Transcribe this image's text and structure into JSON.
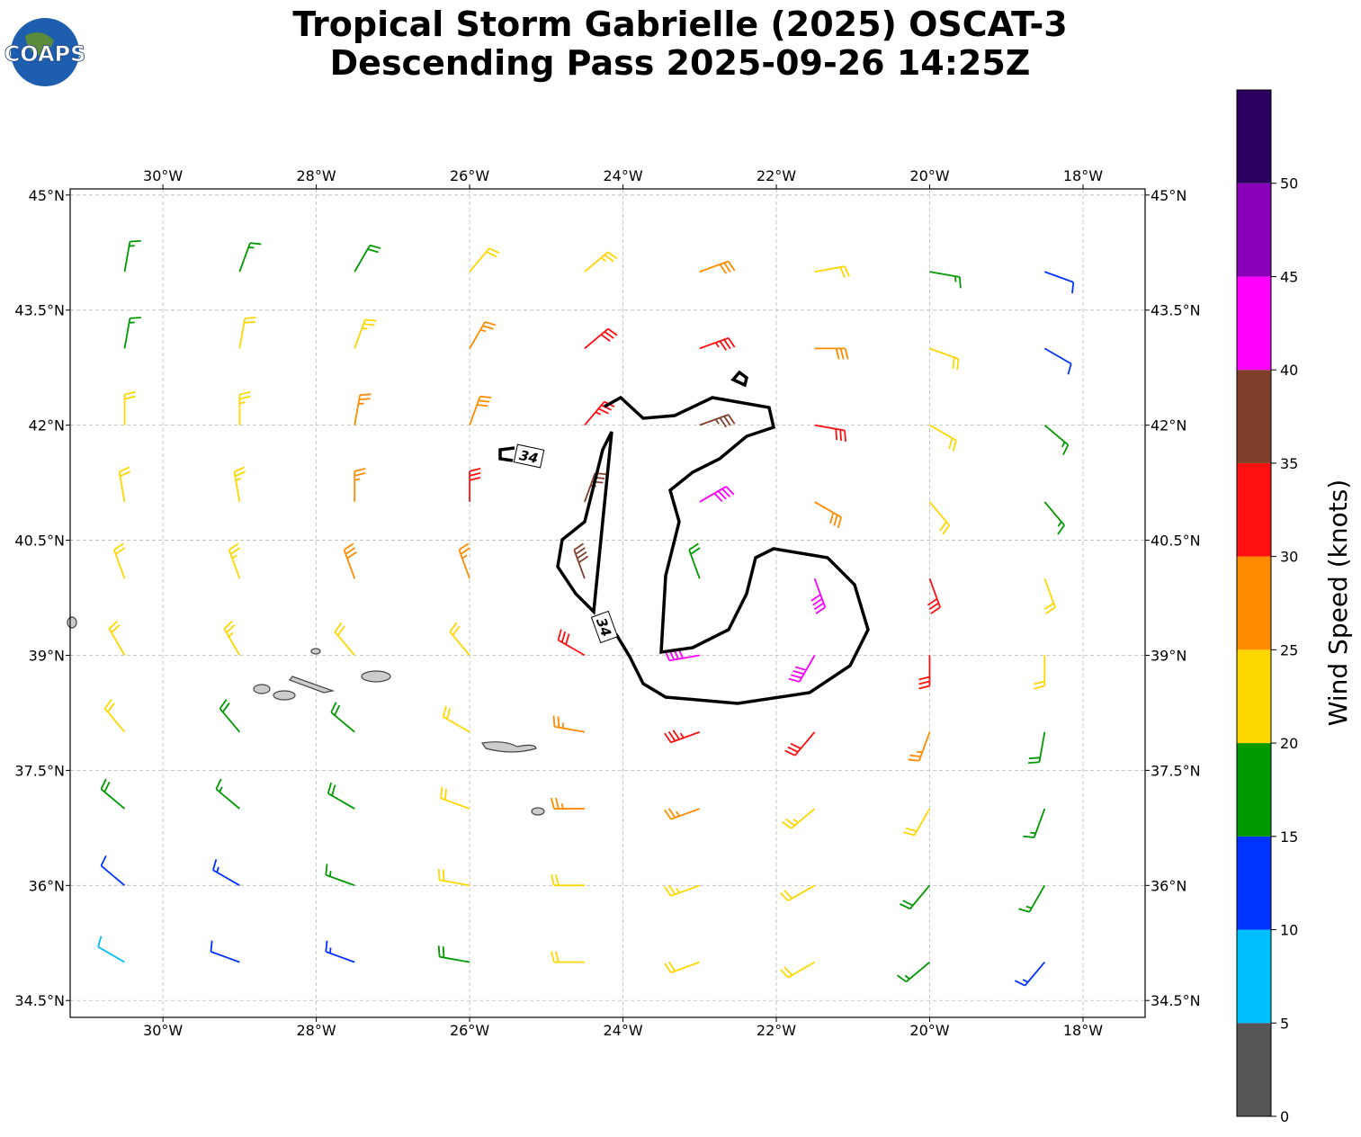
{
  "map": {
    "title": [
      "Tropical Storm Gabrielle (2025) OSCAT-3",
      "Descending Pass 2025-09-26 14:25Z"
    ],
    "logo": "COAPS",
    "xlim": [
      -31.21,
      -17.19
    ],
    "ylim": [
      34.28,
      45.08
    ],
    "xticks": [
      {
        "value": -30,
        "label": "30°W"
      },
      {
        "value": -28,
        "label": "28°W"
      },
      {
        "value": -26,
        "label": "26°W"
      },
      {
        "value": -24,
        "label": "24°W"
      },
      {
        "value": -22,
        "label": "22°W"
      },
      {
        "value": -20,
        "label": "20°W"
      },
      {
        "value": -18,
        "label": "18°W"
      }
    ],
    "yticks": [
      {
        "value": 34.5,
        "label": "34.5°N"
      },
      {
        "value": 36,
        "label": "36°N"
      },
      {
        "value": 37.5,
        "label": "37.5°N"
      },
      {
        "value": 39,
        "label": "39°N"
      },
      {
        "value": 40.5,
        "label": "40.5°N"
      },
      {
        "value": 42,
        "label": "42°N"
      },
      {
        "value": 43.5,
        "label": "43.5°N"
      },
      {
        "value": 45,
        "label": "45°N"
      }
    ],
    "grid": true,
    "wind": {
      "lon": [
        -30.5,
        -29,
        -27.5,
        -26,
        -24.5,
        -23,
        -21.5,
        -20,
        -18.5
      ],
      "lat": [
        44,
        43,
        42,
        41,
        40,
        39,
        38,
        37,
        36,
        35
      ],
      "speed": [
        [
          17,
          17,
          18,
          22,
          24,
          28,
          22,
          17,
          12
        ],
        [
          17,
          22,
          23,
          27,
          30,
          33,
          28,
          22,
          10
        ],
        [
          20,
          23,
          27,
          29,
          33,
          37,
          30,
          22,
          15
        ],
        [
          22,
          24,
          27,
          31,
          36,
          42,
          28,
          22,
          17
        ],
        [
          22,
          24,
          28,
          27,
          38,
          18,
          40,
          30,
          22
        ],
        [
          22,
          23,
          20,
          22,
          30,
          40,
          42,
          30,
          22
        ],
        [
          22,
          18,
          18,
          22,
          27,
          33,
          32,
          25,
          18
        ],
        [
          18,
          17,
          18,
          22,
          25,
          25,
          23,
          20,
          17
        ],
        [
          12,
          13,
          17,
          20,
          22,
          23,
          22,
          18,
          16
        ],
        [
          8,
          10,
          13,
          18,
          22,
          22,
          20,
          17,
          13
        ]
      ],
      "direction": [
        [
          10,
          20,
          30,
          40,
          50,
          70,
          80,
          100,
          110
        ],
        [
          10,
          10,
          20,
          30,
          50,
          70,
          90,
          110,
          120
        ],
        [
          0,
          0,
          10,
          20,
          40,
          70,
          100,
          120,
          130
        ],
        [
          350,
          350,
          0,
          0,
          20,
          60,
          120,
          140,
          140
        ],
        [
          340,
          340,
          340,
          340,
          340,
          340,
          160,
          160,
          160
        ],
        [
          330,
          330,
          320,
          320,
          300,
          260,
          210,
          180,
          180
        ],
        [
          320,
          320,
          310,
          300,
          280,
          250,
          220,
          200,
          190
        ],
        [
          310,
          310,
          300,
          290,
          270,
          250,
          230,
          210,
          200
        ],
        [
          310,
          300,
          290,
          280,
          270,
          250,
          240,
          220,
          210
        ],
        [
          300,
          290,
          290,
          280,
          270,
          250,
          240,
          230,
          220
        ]
      ]
    },
    "contour_level": 34,
    "colorbar": {
      "label": "Wind Speed (knots)",
      "clim": [
        0,
        55
      ],
      "ticks": [
        0,
        5,
        10,
        15,
        20,
        25,
        30,
        35,
        40,
        45,
        50
      ],
      "colors": [
        "#555555",
        "#00bfff",
        "#0033ff",
        "#009900",
        "#ffd700",
        "#ff8c00",
        "#ff1010",
        "#803f2b",
        "#ff00ff",
        "#8800b8",
        "#2a0060"
      ]
    }
  }
}
